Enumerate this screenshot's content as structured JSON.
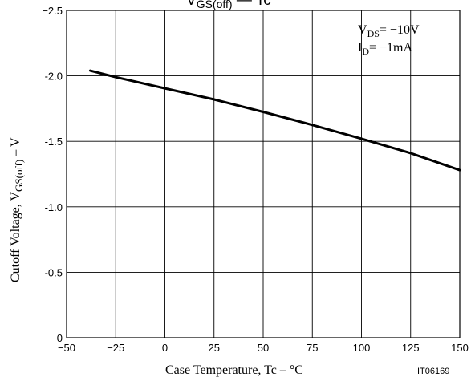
{
  "chart_data": {
    "type": "line",
    "title_main": "V",
    "title_sub": "GS(off)",
    "title_rest": " — Tc",
    "xlabel": "Case Temperature, Tc  –  °C",
    "ylabel_main": "Cutoff Voltage, V",
    "ylabel_sub": "GS(off)",
    "ylabel_rest": "  –  V",
    "xlim": [
      -50,
      150
    ],
    "ylim": [
      0,
      -2.5
    ],
    "x_ticks": [
      "−50",
      "−25",
      "0",
      "25",
      "50",
      "75",
      "100",
      "125",
      "150"
    ],
    "y_ticks": [
      "0",
      "-0.5",
      "-1.0",
      "-1.5",
      "-2.0",
      "−2.5"
    ],
    "grid": true,
    "conditions": [
      {
        "main": "V",
        "sub": "DS",
        "rest": "= −10V"
      },
      {
        "main": "I",
        "sub": "D",
        "rest": "= −1mA"
      }
    ],
    "figure_code": "IT06169",
    "series": [
      {
        "x": [
          -38,
          -25,
          0,
          25,
          50,
          75,
          100,
          125,
          150
        ],
        "y": [
          -2.04,
          -1.99,
          -1.905,
          -1.82,
          -1.725,
          -1.625,
          -1.52,
          -1.41,
          -1.28
        ]
      }
    ]
  }
}
